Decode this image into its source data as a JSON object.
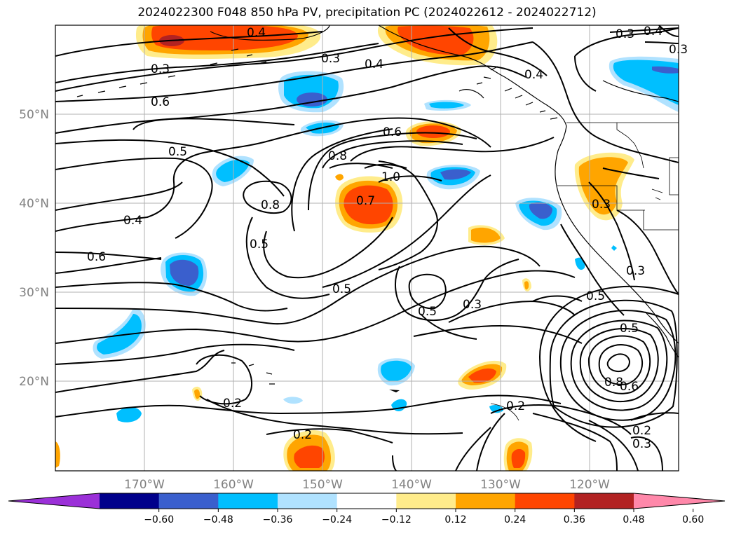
{
  "title": "2024022300 F048 850 hPa PV, precipitation PC (2024022612 - 2024022712)",
  "lat_labels": [
    "50°N",
    "40°N",
    "30°N",
    "20°N"
  ],
  "lon_labels": [
    "170°W",
    "160°W",
    "150°W",
    "140°W",
    "130°W",
    "120°W"
  ],
  "colorbar": {
    "ticks": [
      "−0.60",
      "−0.48",
      "−0.36",
      "−0.24",
      "−0.12",
      "0.12",
      "0.24",
      "0.36",
      "0.48",
      "0.60"
    ],
    "colors": [
      "#9b30d8",
      "#00008b",
      "#3a5fcd",
      "#00bfff",
      "#b0e2ff",
      "#ffffff",
      "#ffec8b",
      "#ffa500",
      "#ff4500",
      "#b22222",
      "#ff88aa"
    ]
  },
  "contour_labels": [
    "0.4",
    "0.3",
    "0.3",
    "0.4",
    "0.4",
    "0.3",
    "0.4",
    "0.3",
    "0.6",
    "0.6",
    "0.5",
    "0.8",
    "1.0",
    "0.7",
    "0.8",
    "0.4",
    "0.5",
    "0.6",
    "0.5",
    "0.5",
    "0.3",
    "0.3",
    "0.5",
    "0.5",
    "0.8",
    "0.6",
    "0.2",
    "0.2",
    "0.2",
    "0.2",
    "0.3",
    "0.3"
  ]
}
